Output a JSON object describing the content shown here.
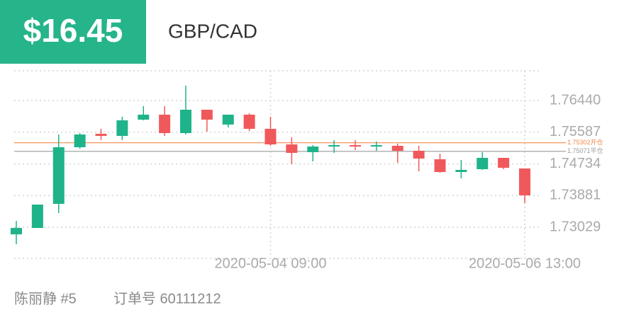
{
  "header": {
    "price": "$16.45",
    "pair": "GBP/CAD"
  },
  "footer": {
    "trader": "陈丽静 #5",
    "order": "订单号 60111212"
  },
  "chart_data": {
    "type": "candlestick",
    "categories": [
      null,
      null,
      null,
      null,
      null,
      null,
      null,
      null,
      null,
      null,
      null,
      null,
      "2020-05-04 09:00",
      null,
      null,
      null,
      null,
      null,
      null,
      null,
      null,
      null,
      null,
      null,
      "2020-05-06 13:00"
    ],
    "open": [
      1.72838,
      1.73009,
      1.73657,
      1.75182,
      1.75544,
      1.75487,
      1.75925,
      1.76059,
      1.75563,
      1.76192,
      1.75792,
      1.76059,
      1.75678,
      1.75258,
      1.75049,
      1.75201,
      1.75239,
      1.75201,
      1.7522,
      1.75087,
      1.74858,
      1.74515,
      1.74591,
      1.74896,
      1.7461
    ],
    "high": [
      1.732,
      1.73638,
      1.75525,
      1.75563,
      1.75678,
      1.76002,
      1.76288,
      1.76288,
      1.7684,
      1.76192,
      1.76059,
      1.76097,
      1.76002,
      1.75449,
      1.75239,
      1.75373,
      1.75373,
      1.75335,
      1.75277,
      1.7522,
      1.75011,
      1.74839,
      1.75049,
      1.74896,
      1.7461
    ],
    "low": [
      1.72571,
      1.73009,
      1.73409,
      1.75144,
      1.75373,
      1.75373,
      1.75906,
      1.75487,
      1.75525,
      1.75601,
      1.75716,
      1.7562,
      1.7522,
      1.74725,
      1.74801,
      1.7503,
      1.75106,
      1.75087,
      1.74763,
      1.74534,
      1.74496,
      1.74343,
      1.74572,
      1.74591,
      1.73676
    ],
    "close": [
      1.73009,
      1.73638,
      1.75182,
      1.75525,
      1.75487,
      1.75906,
      1.76059,
      1.75563,
      1.76192,
      1.75925,
      1.76059,
      1.75678,
      1.75258,
      1.7503,
      1.75201,
      1.75239,
      1.75201,
      1.75239,
      1.75087,
      1.74877,
      1.74515,
      1.74572,
      1.74896,
      1.74629,
      1.73886
    ],
    "up_color": "#1fb38a",
    "down_color": "#f0595b",
    "ylim": [
      1.7219,
      1.7724
    ],
    "yticks": [
      1.73029,
      1.73881,
      1.74734,
      1.75587,
      {
        "value": 1.7644,
        "label": "1.76440"
      }
    ],
    "hlines": [
      {
        "value": 1.75302,
        "label": "1.75302开仓",
        "color": "#f08a4b"
      },
      {
        "value": 1.75071,
        "label": "1.75071平仓",
        "color": "#9a9a9a"
      }
    ],
    "grid": true
  }
}
